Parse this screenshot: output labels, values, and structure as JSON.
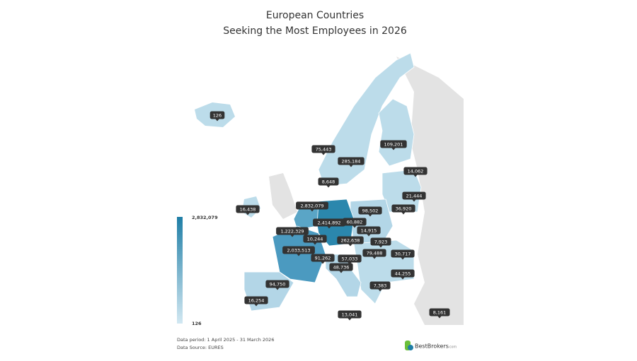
{
  "title": [
    "European Countries",
    "Seeking the Most Employees in 2026"
  ],
  "labels": [
    "126",
    "75,443",
    "285,184",
    "109,201",
    "14,062",
    "8,648",
    "21,444",
    "16,438",
    "2,832,079",
    "36,920",
    "98,502",
    "1,222,329",
    "2,414,892",
    "60,882",
    "14,915",
    "10,244",
    "262,638",
    "7,923",
    "2,033,513",
    "79,488",
    "30,717",
    "91,262",
    "57,033",
    "48,736",
    "44,255",
    "94,750",
    "7,383",
    "16,254",
    "13,041",
    "8,161"
  ],
  "legend": {
    "max": "2,832,079",
    "min": "126"
  },
  "footer": {
    "period": "Data period: 1 April 2025 - 31 March 2026",
    "source": "Data Source: EURES"
  },
  "logo": {
    "name": "BestBrokers",
    "suffix": ".com"
  }
}
